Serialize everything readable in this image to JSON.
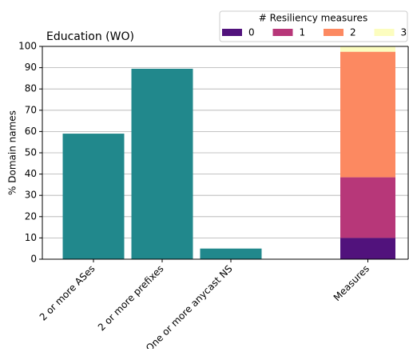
{
  "chart_data": {
    "type": "bar",
    "title": "Education (WO)",
    "y_label": "% Domain names",
    "categories": [
      "2 or more ASes",
      "2 or more prefixes",
      "One or more anycast NS"
    ],
    "values": [
      59,
      89.5,
      5
    ],
    "color": "#21888c",
    "stacked": {
      "categories": [
        "Measures"
      ],
      "legend_title": "# Resiliency measures",
      "series": [
        {
          "name": "0",
          "color": "#51127c",
          "values": [
            10
          ]
        },
        {
          "name": "1",
          "color": "#b73779",
          "values": [
            28.5
          ]
        },
        {
          "name": "2",
          "color": "#fc8961",
          "values": [
            59
          ]
        },
        {
          "name": "3",
          "color": "#fcfdbf",
          "values": [
            2.5
          ]
        }
      ]
    },
    "ylim": [
      0,
      100
    ],
    "yticks": [
      0,
      10,
      20,
      30,
      40,
      50,
      60,
      70,
      80,
      90,
      100
    ],
    "grid": true
  }
}
